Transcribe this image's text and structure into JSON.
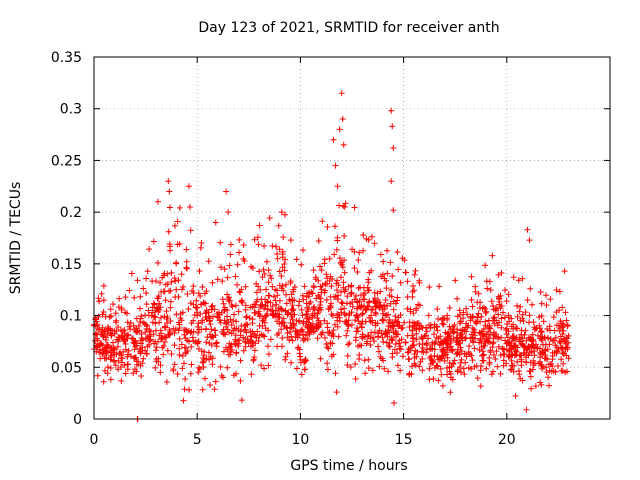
{
  "title": "Day 123 of 2021, SRMTID for receiver anth",
  "chart_data": {
    "type": "scatter",
    "title": "Day 123 of 2021, SRMTID for receiver anth",
    "xlabel": "GPS time / hours",
    "ylabel": "SRMTID / TECUs",
    "xlim": [
      0,
      25
    ],
    "ylim": [
      0,
      0.35
    ],
    "xticks": [
      0,
      5,
      10,
      15,
      20
    ],
    "xtick_labels": [
      "0",
      "5",
      "10",
      "15",
      "20"
    ],
    "yticks": [
      0,
      0.05,
      0.1,
      0.15,
      0.2,
      0.25,
      0.3,
      0.35
    ],
    "ytick_labels": [
      "0",
      "0.05",
      "0.1",
      "0.15",
      "0.2",
      "0.25",
      "0.3",
      "0.35"
    ],
    "grid": true,
    "marker": "+",
    "series": [
      {
        "name": "SRMTID",
        "color": "#ff0000",
        "note": "Dense cloud of ~2000 points, mostly 0.03–0.15 TECU; peaks near 12 h (~0.315) and 14.5 h (~0.30).",
        "profile": {
          "x_hours": [
            0,
            1,
            2,
            3,
            4,
            5,
            6,
            7,
            8,
            9,
            10,
            11,
            12,
            13,
            14,
            15,
            16,
            17,
            18,
            19,
            20,
            21,
            22,
            23
          ],
          "center": [
            0.078,
            0.072,
            0.078,
            0.09,
            0.095,
            0.078,
            0.083,
            0.085,
            0.098,
            0.115,
            0.085,
            0.1,
            0.118,
            0.1,
            0.095,
            0.085,
            0.072,
            0.068,
            0.08,
            0.082,
            0.075,
            0.07,
            0.065,
            0.078
          ],
          "spread": [
            0.018,
            0.02,
            0.022,
            0.035,
            0.04,
            0.035,
            0.035,
            0.03,
            0.03,
            0.032,
            0.025,
            0.03,
            0.04,
            0.035,
            0.03,
            0.025,
            0.022,
            0.022,
            0.022,
            0.025,
            0.022,
            0.025,
            0.018,
            0.02
          ]
        },
        "outliers": [
          {
            "x": 2.1,
            "y": 0.0
          },
          {
            "x": 2.12,
            "y": 0.0
          },
          {
            "x": 3.1,
            "y": 0.21
          },
          {
            "x": 3.6,
            "y": 0.23
          },
          {
            "x": 3.65,
            "y": 0.22
          },
          {
            "x": 4.6,
            "y": 0.225
          },
          {
            "x": 4.65,
            "y": 0.205
          },
          {
            "x": 5.9,
            "y": 0.19
          },
          {
            "x": 6.4,
            "y": 0.22
          },
          {
            "x": 6.5,
            "y": 0.2
          },
          {
            "x": 9.1,
            "y": 0.2
          },
          {
            "x": 11.6,
            "y": 0.27
          },
          {
            "x": 11.7,
            "y": 0.245
          },
          {
            "x": 11.8,
            "y": 0.225
          },
          {
            "x": 11.9,
            "y": 0.28
          },
          {
            "x": 12.0,
            "y": 0.315
          },
          {
            "x": 12.05,
            "y": 0.29
          },
          {
            "x": 12.1,
            "y": 0.265
          },
          {
            "x": 12.15,
            "y": 0.205
          },
          {
            "x": 14.4,
            "y": 0.298
          },
          {
            "x": 14.45,
            "y": 0.283
          },
          {
            "x": 14.5,
            "y": 0.262
          },
          {
            "x": 14.4,
            "y": 0.23
          },
          {
            "x": 14.5,
            "y": 0.202
          },
          {
            "x": 19.3,
            "y": 0.158
          },
          {
            "x": 21.0,
            "y": 0.183
          },
          {
            "x": 21.1,
            "y": 0.173
          },
          {
            "x": 20.95,
            "y": 0.009
          },
          {
            "x": 22.8,
            "y": 0.143
          }
        ]
      }
    ]
  }
}
